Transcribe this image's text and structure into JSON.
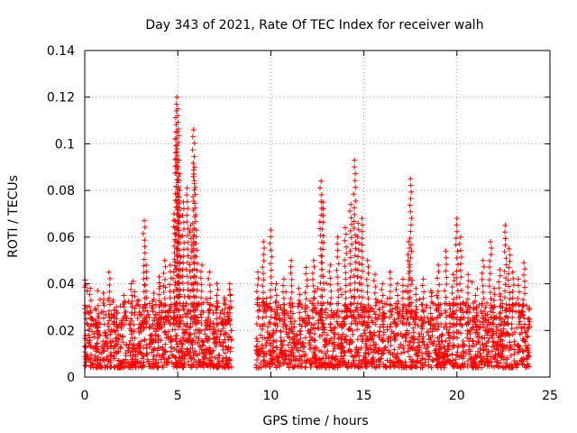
{
  "chart_data": {
    "type": "scatter",
    "title": "Day 343 of 2021, Rate Of TEC Index for receiver walh",
    "xlabel": "GPS time / hours",
    "ylabel": "ROTI / TECUs",
    "xlim": [
      0,
      25
    ],
    "ylim": [
      0,
      0.14
    ],
    "xticks": [
      0,
      5,
      10,
      15,
      20,
      25
    ],
    "yticks": [
      0,
      0.02,
      0.04,
      0.06,
      0.08,
      0.1,
      0.12,
      0.14
    ],
    "xtick_labels": [
      "0",
      "5",
      "10",
      "15",
      "20",
      "25"
    ],
    "ytick_labels": [
      "0",
      "0.02",
      "0.04",
      "0.06",
      "0.08",
      "0.1",
      "0.12",
      "0.14"
    ],
    "grid": true,
    "marker": "+",
    "color": "#ff0000",
    "data_gap_hours": [
      7.9,
      9.2
    ],
    "series": [
      {
        "name": "ROTI",
        "x": [
          0.1,
          0.3,
          0.6,
          1.0,
          1.3,
          1.7,
          2.1,
          2.5,
          2.9,
          3.2,
          3.3,
          3.7,
          4.0,
          4.3,
          4.6,
          4.8,
          4.9,
          4.95,
          5.0,
          5.05,
          5.1,
          5.3,
          5.5,
          5.7,
          5.85,
          5.9,
          6.0,
          6.3,
          6.7,
          7.1,
          7.5,
          7.8,
          9.3,
          9.6,
          10.0,
          10.3,
          10.7,
          11.1,
          11.5,
          11.9,
          12.3,
          12.7,
          12.8,
          13.2,
          13.6,
          14.0,
          14.3,
          14.5,
          14.7,
          14.9,
          15.2,
          15.6,
          16.0,
          16.4,
          16.8,
          17.1,
          17.4,
          17.5,
          17.8,
          18.2,
          18.6,
          19.0,
          19.4,
          19.8,
          20.0,
          20.2,
          20.6,
          21.0,
          21.4,
          21.8,
          22.0,
          22.3,
          22.6,
          22.8,
          23.0,
          23.3,
          23.6,
          23.9
        ],
        "y": [
          0.03,
          0.038,
          0.024,
          0.036,
          0.045,
          0.03,
          0.035,
          0.04,
          0.033,
          0.067,
          0.048,
          0.036,
          0.043,
          0.05,
          0.048,
          0.07,
          0.105,
          0.12,
          0.115,
          0.093,
          0.08,
          0.075,
          0.081,
          0.065,
          0.106,
          0.09,
          0.063,
          0.048,
          0.045,
          0.04,
          0.034,
          0.04,
          0.045,
          0.058,
          0.063,
          0.04,
          0.042,
          0.05,
          0.038,
          0.047,
          0.05,
          0.084,
          0.075,
          0.048,
          0.06,
          0.064,
          0.074,
          0.093,
          0.066,
          0.068,
          0.05,
          0.044,
          0.04,
          0.045,
          0.04,
          0.042,
          0.058,
          0.085,
          0.038,
          0.042,
          0.037,
          0.048,
          0.054,
          0.044,
          0.068,
          0.06,
          0.044,
          0.035,
          0.05,
          0.058,
          0.038,
          0.046,
          0.065,
          0.055,
          0.045,
          0.042,
          0.049,
          0.025
        ]
      }
    ]
  }
}
